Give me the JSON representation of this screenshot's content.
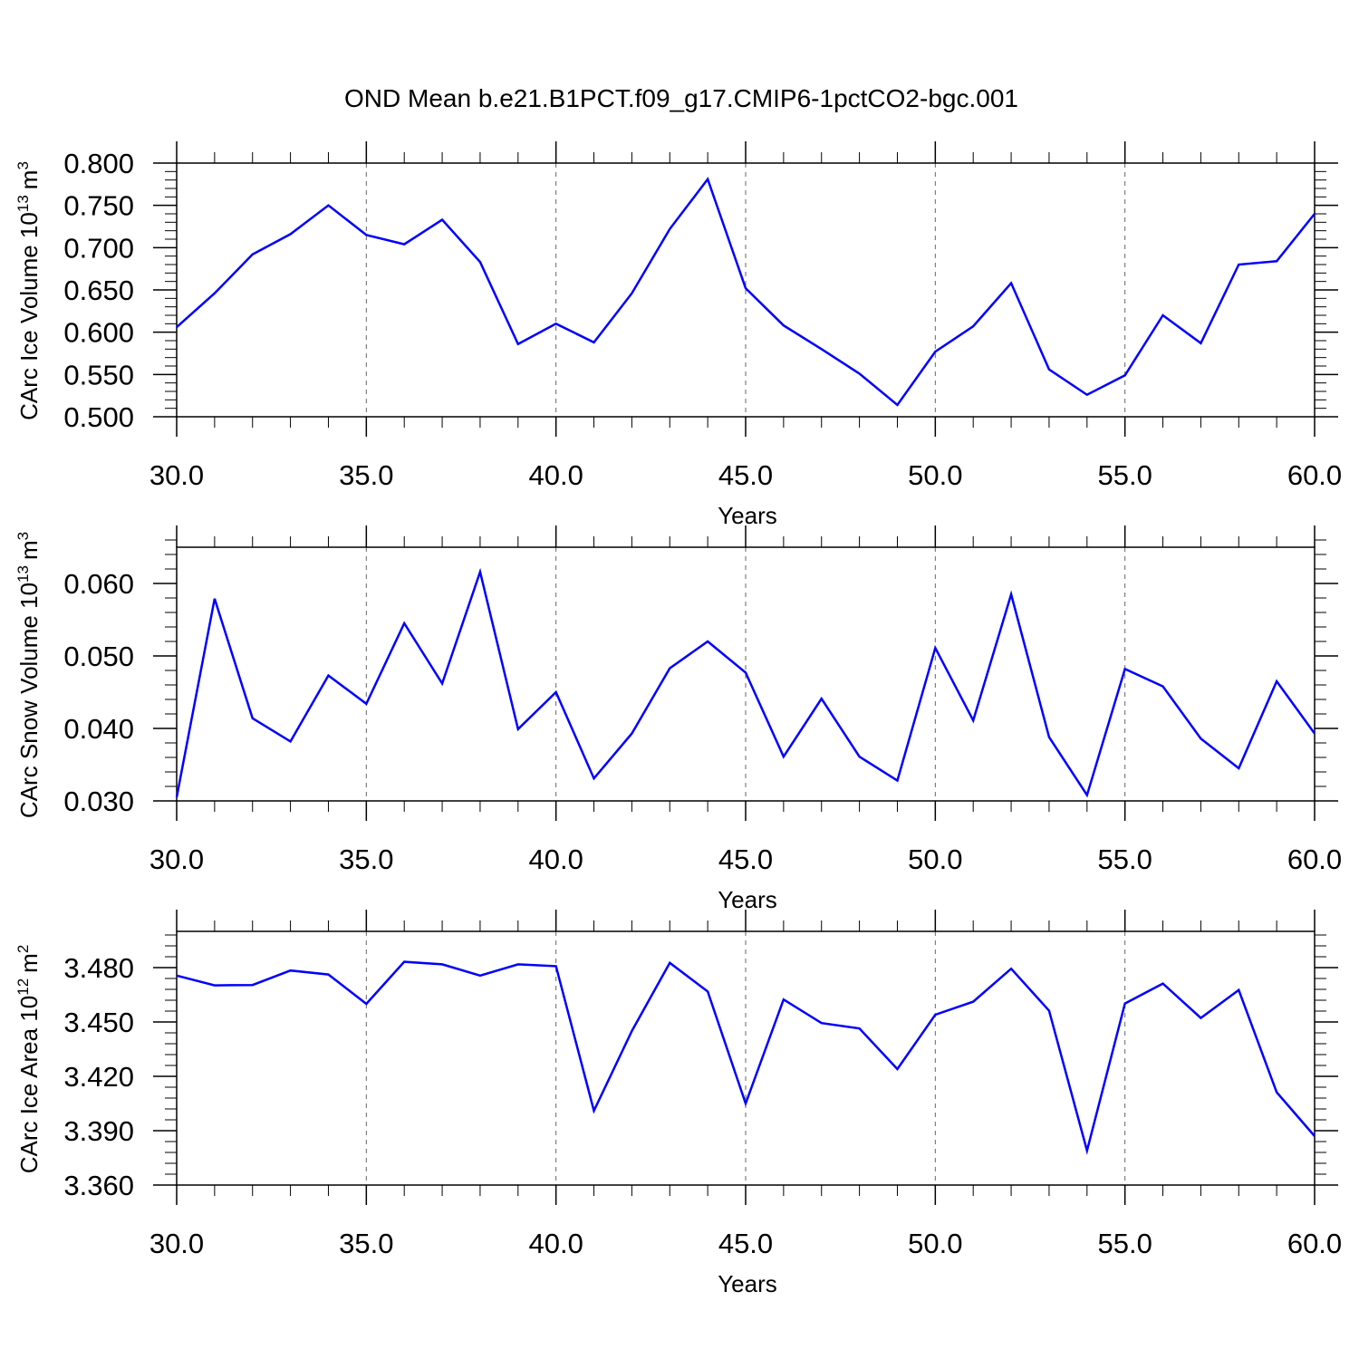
{
  "figure": {
    "title": "OND Mean b.e21.B1PCT.f09_g17.CMIP6-1pctCO2-bgc.001"
  },
  "chart_data": [
    {
      "type": "line",
      "title": "OND Mean b.e21.B1PCT.f09_g17.CMIP6-1pctCO2-bgc.001",
      "xlabel": "Years",
      "ylabel": "CArc Ice Volume 10",
      "ylabel_unit": "m",
      "ylabel_exp": "13",
      "ylabel_unit_exp": "3",
      "xlim": [
        30,
        60
      ],
      "ylim": [
        0.5,
        0.8
      ],
      "x_ticks": [
        30,
        35,
        40,
        45,
        50,
        55,
        60
      ],
      "x_tick_labels": [
        "30.0",
        "35.0",
        "40.0",
        "45.0",
        "50.0",
        "55.0",
        "60.0"
      ],
      "y_ticks": [
        0.5,
        0.55,
        0.6,
        0.65,
        0.7,
        0.75,
        0.8
      ],
      "y_tick_labels": [
        "0.500",
        "0.550",
        "0.600",
        "0.650",
        "0.700",
        "0.750",
        "0.800"
      ],
      "y_minor_step": 0.01,
      "x_minor_step": 1,
      "vertical_dashed_grid": [
        35,
        40,
        45,
        50,
        55
      ],
      "x": [
        30,
        31,
        32,
        33,
        34,
        35,
        36,
        37,
        38,
        39,
        40,
        41,
        42,
        43,
        44,
        45,
        46,
        47,
        48,
        49,
        50,
        51,
        52,
        53,
        54,
        55,
        56,
        57,
        58,
        59,
        60
      ],
      "series": [
        {
          "color": "#0000ff",
          "values": [
            0.606,
            0.646,
            0.692,
            0.716,
            0.75,
            0.715,
            0.704,
            0.733,
            0.683,
            0.586,
            0.61,
            0.588,
            0.646,
            0.722,
            0.781,
            0.652,
            0.608,
            0.58,
            0.551,
            0.514,
            0.577,
            0.607,
            0.658,
            0.556,
            0.526,
            0.549,
            0.62,
            0.587,
            0.68,
            0.684,
            0.74
          ]
        }
      ]
    },
    {
      "type": "line",
      "xlabel": "Years",
      "ylabel": "CArc Snow Volume 10",
      "ylabel_unit": "m",
      "ylabel_exp": "13",
      "ylabel_unit_exp": "3",
      "xlim": [
        30,
        60
      ],
      "ylim": [
        0.03,
        0.065
      ],
      "x_ticks": [
        30,
        35,
        40,
        45,
        50,
        55,
        60
      ],
      "x_tick_labels": [
        "30.0",
        "35.0",
        "40.0",
        "45.0",
        "50.0",
        "55.0",
        "60.0"
      ],
      "y_ticks": [
        0.03,
        0.04,
        0.05,
        0.06
      ],
      "y_tick_labels": [
        "0.030",
        "0.040",
        "0.050",
        "0.060"
      ],
      "y_minor_step": 0.002,
      "x_minor_step": 1,
      "vertical_dashed_grid": [
        35,
        40,
        45,
        50,
        55
      ],
      "x": [
        30,
        31,
        32,
        33,
        34,
        35,
        36,
        37,
        38,
        39,
        40,
        41,
        42,
        43,
        44,
        45,
        46,
        47,
        48,
        49,
        50,
        51,
        52,
        53,
        54,
        55,
        56,
        57,
        58,
        59,
        60
      ],
      "series": [
        {
          "color": "#0000ff",
          "values": [
            0.0305,
            0.0579,
            0.0414,
            0.0382,
            0.0473,
            0.0434,
            0.0545,
            0.0462,
            0.0616,
            0.0399,
            0.045,
            0.0331,
            0.0393,
            0.0483,
            0.052,
            0.0477,
            0.0361,
            0.0441,
            0.0361,
            0.0328,
            0.0511,
            0.0411,
            0.0585,
            0.0388,
            0.0308,
            0.0482,
            0.0458,
            0.0386,
            0.0345,
            0.0465,
            0.0393
          ]
        }
      ]
    },
    {
      "type": "line",
      "xlabel": "Years",
      "ylabel": "CArc Ice Area 10",
      "ylabel_unit": "m",
      "ylabel_exp": "12",
      "ylabel_unit_exp": "2",
      "xlim": [
        30,
        60
      ],
      "ylim": [
        3.36,
        3.5
      ],
      "x_ticks": [
        30,
        35,
        40,
        45,
        50,
        55,
        60
      ],
      "x_tick_labels": [
        "30.0",
        "35.0",
        "40.0",
        "45.0",
        "50.0",
        "55.0",
        "60.0"
      ],
      "y_ticks": [
        3.36,
        3.39,
        3.42,
        3.45,
        3.48
      ],
      "y_tick_labels": [
        "3.360",
        "3.390",
        "3.420",
        "3.450",
        "3.480"
      ],
      "y_minor_step": 0.006,
      "x_minor_step": 1,
      "vertical_dashed_grid": [
        35,
        40,
        45,
        50,
        55
      ],
      "x": [
        30,
        31,
        32,
        33,
        34,
        35,
        36,
        37,
        38,
        39,
        40,
        41,
        42,
        43,
        44,
        45,
        46,
        47,
        48,
        49,
        50,
        51,
        52,
        53,
        54,
        55,
        56,
        57,
        58,
        59,
        60
      ],
      "series": [
        {
          "color": "#0000ff",
          "values": [
            3.4756,
            3.4702,
            3.4704,
            3.4784,
            3.4762,
            3.46,
            3.4832,
            3.4818,
            3.4756,
            3.4818,
            3.4808,
            3.401,
            3.445,
            3.4826,
            3.4668,
            3.405,
            3.4624,
            3.4494,
            3.4464,
            3.424,
            3.454,
            3.4612,
            3.4794,
            3.4562,
            3.379,
            3.4602,
            3.4712,
            3.4522,
            3.4676,
            3.4112,
            3.387
          ]
        }
      ]
    }
  ]
}
